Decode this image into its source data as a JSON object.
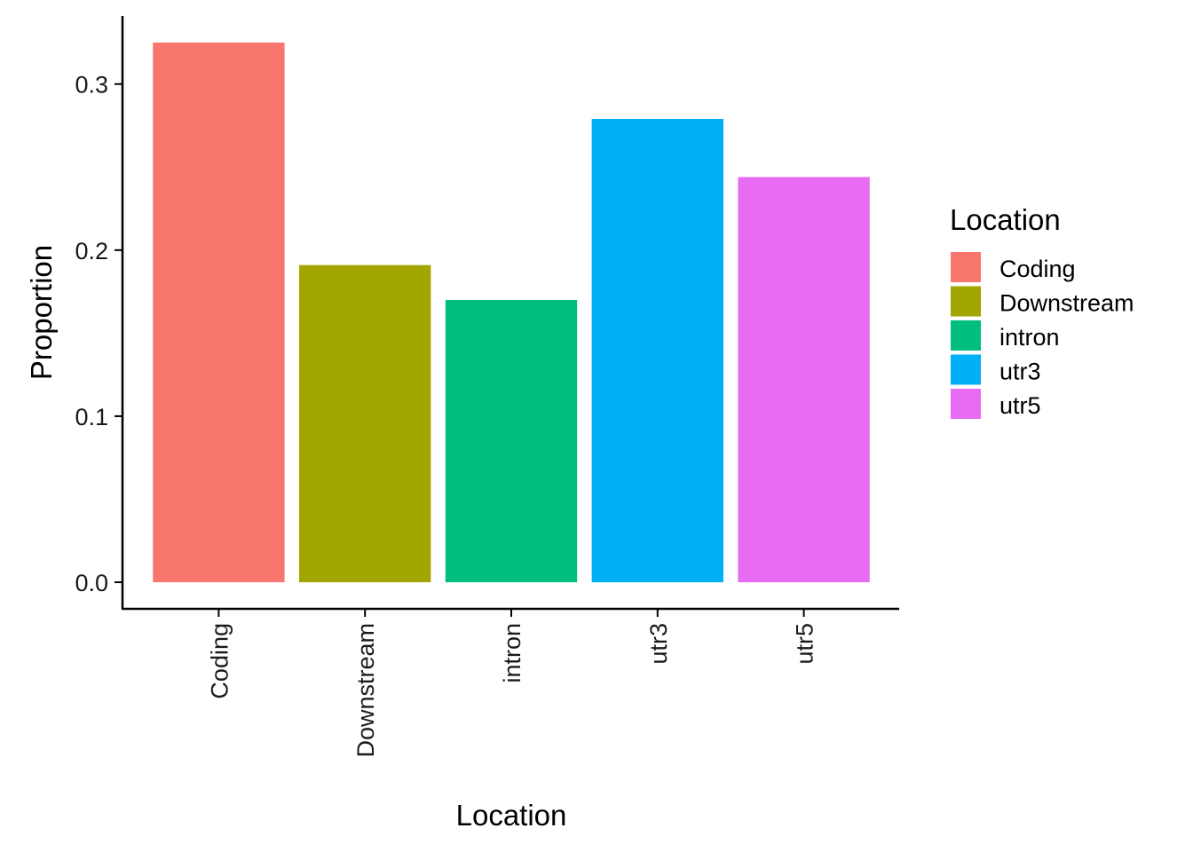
{
  "chart_data": {
    "type": "bar",
    "categories": [
      "Coding",
      "Downstream",
      "intron",
      "utr3",
      "utr5"
    ],
    "values": [
      0.325,
      0.191,
      0.17,
      0.279,
      0.244
    ],
    "colors": [
      "#F8766D",
      "#A3A500",
      "#00BF7D",
      "#00B0F6",
      "#E76BF3"
    ],
    "xlabel": "Location",
    "ylabel": "Proportion",
    "ylim": [
      -0.016,
      0.341
    ],
    "yticks": [
      0.0,
      0.1,
      0.2,
      0.3
    ],
    "ytick_labels": [
      "0.0",
      "0.1",
      "0.2",
      "0.3"
    ],
    "grid": false,
    "legend": {
      "title": "Location",
      "placement": "right",
      "entries": [
        "Coding",
        "Downstream",
        "intron",
        "utr3",
        "utr5"
      ]
    }
  }
}
